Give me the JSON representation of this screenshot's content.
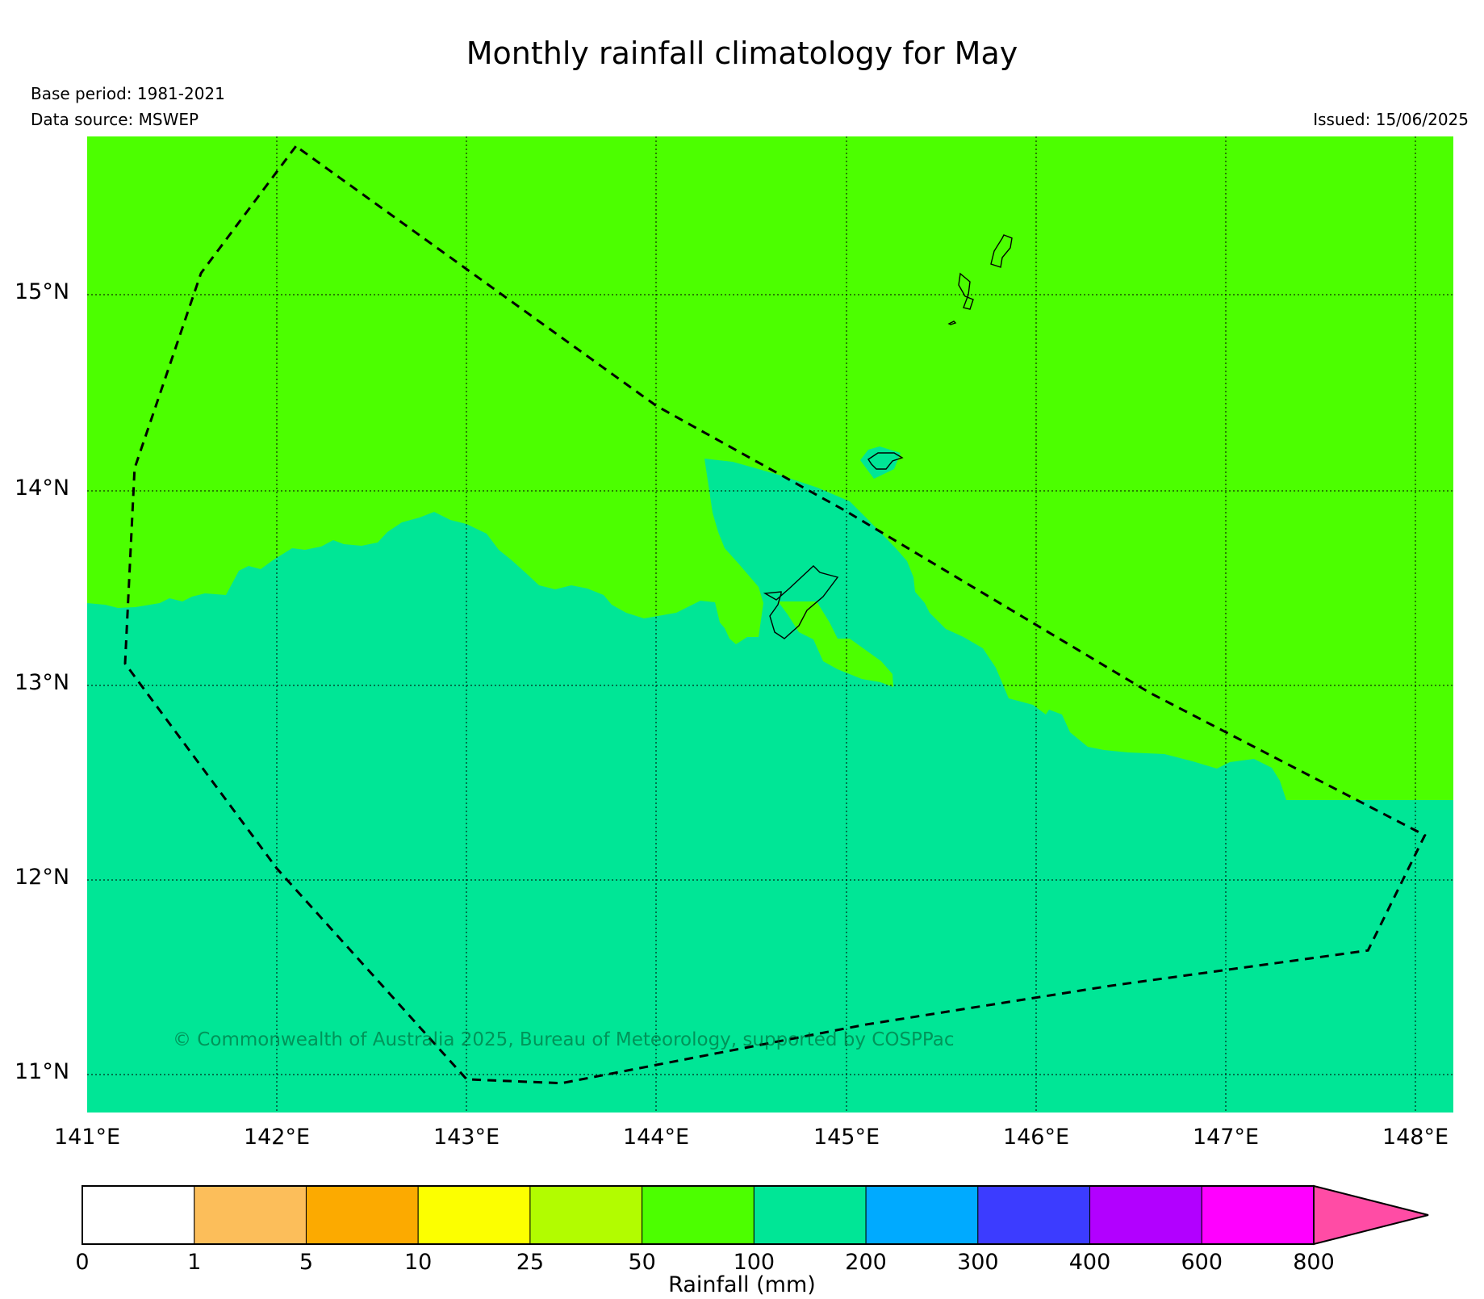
{
  "title": "Monthly rainfall climatology for May",
  "base_period": "Base period: 1981-2021",
  "data_source": "Data source: MSWEP",
  "issued": "Issued: 15/06/2025",
  "copyright": "© Commonwealth of Australia 2025, Bureau of Meteorology, supported by COSPPac",
  "map": {
    "lon_range": [
      141.0,
      148.2
    ],
    "lat_range": [
      10.8,
      15.8
    ],
    "gridlines": true,
    "lat_labels": [
      "11°N",
      "12°N",
      "13°N",
      "14°N",
      "15°N"
    ],
    "lat_values": [
      11,
      12,
      13,
      14,
      15
    ],
    "lon_labels": [
      "141°E",
      "142°E",
      "143°E",
      "144°E",
      "145°E",
      "146°E",
      "147°E",
      "148°E"
    ],
    "lon_values": [
      141,
      142,
      143,
      144,
      145,
      146,
      147,
      148
    ],
    "colors": {
      "north_zone": "#4cff00",
      "south_zone": "#00e696",
      "boundary": "#000000"
    },
    "zones": [
      {
        "category": "50-100 mm",
        "location": "north of ~13.5°N"
      },
      {
        "category": "100-200 mm",
        "location": "south of ~13.5°N"
      }
    ],
    "eez_boundary": [
      [
        142.1,
        15.75
      ],
      [
        141.6,
        15.1
      ],
      [
        141.25,
        14.1
      ],
      [
        141.2,
        13.1
      ],
      [
        142.0,
        12.05
      ],
      [
        143.0,
        10.97
      ],
      [
        143.5,
        10.95
      ],
      [
        145.1,
        11.25
      ],
      [
        146.4,
        11.45
      ],
      [
        147.75,
        11.63
      ],
      [
        148.05,
        12.22
      ],
      [
        146.6,
        12.95
      ],
      [
        145.0,
        13.88
      ],
      [
        144.0,
        14.42
      ],
      [
        142.1,
        15.75
      ]
    ]
  },
  "colorbar": {
    "label": "Rainfall (mm)",
    "ticks": [
      "0",
      "1",
      "5",
      "10",
      "25",
      "50",
      "100",
      "200",
      "300",
      "400",
      "600",
      "800"
    ],
    "colors": [
      "#ffffff",
      "#fcbe5a",
      "#fcaa00",
      "#fcff00",
      "#b2fc00",
      "#4cff00",
      "#00e696",
      "#00aaff",
      "#3c3cff",
      "#b200ff",
      "#ff00ff"
    ],
    "extend_color": "#ff4ca5"
  }
}
